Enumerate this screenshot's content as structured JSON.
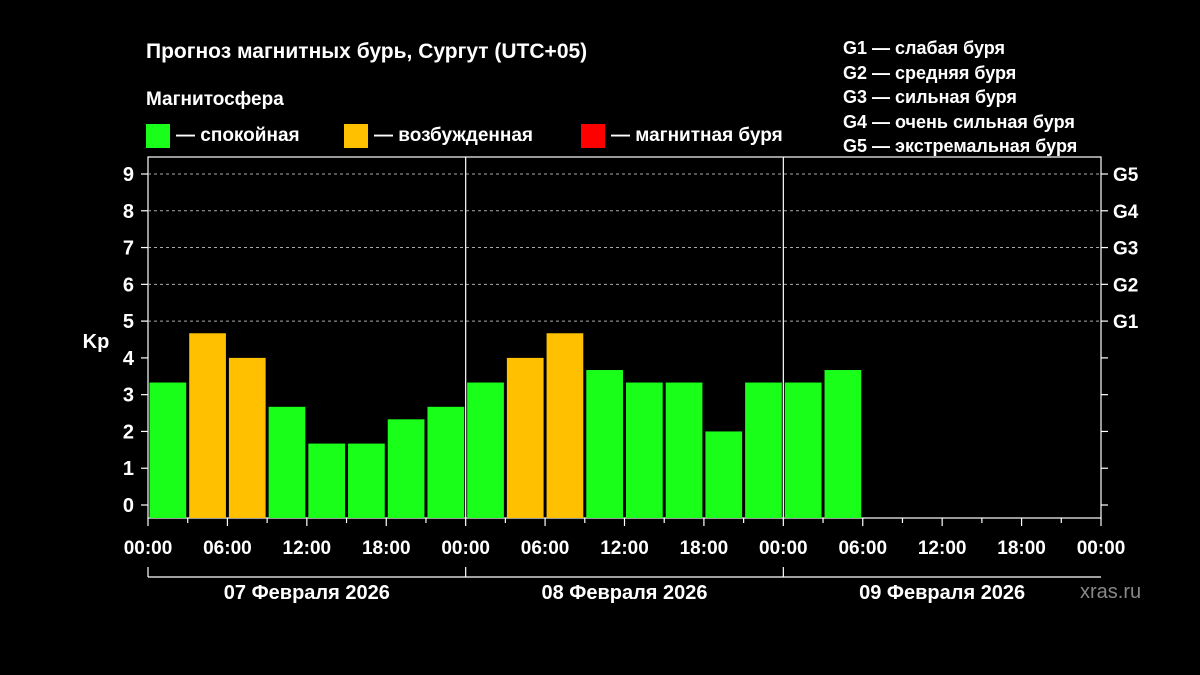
{
  "title": "Прогноз магнитных бурь, Сургут (UTC+05)",
  "subtitle": "Магнитосфера",
  "legend": [
    {
      "label": "— спокойная",
      "color": "#1aff1a"
    },
    {
      "label": "— возбужденная",
      "color": "#ffc000"
    },
    {
      "label": "— магнитная буря",
      "color": "#ff0000"
    }
  ],
  "g_legend": [
    "G1 — слабая буря",
    "G2 — средняя буря",
    "G3 — сильная буря",
    "G4 — очень сильная буря",
    "G5 — экстремальная буря"
  ],
  "watermark": "xras.ru",
  "chart_data": {
    "type": "bar",
    "ylabel": "Kp",
    "ylim": [
      0,
      9
    ],
    "y_ticks": [
      "0",
      "1",
      "2",
      "3",
      "4",
      "5",
      "6",
      "7",
      "8",
      "9"
    ],
    "right_ticks": [
      {
        "kp": 5,
        "label": "G1"
      },
      {
        "kp": 6,
        "label": "G2"
      },
      {
        "kp": 7,
        "label": "G3"
      },
      {
        "kp": 8,
        "label": "G4"
      },
      {
        "kp": 9,
        "label": "G5"
      }
    ],
    "x_tick_labels": [
      "00:00",
      "06:00",
      "12:00",
      "18:00",
      "00:00",
      "06:00",
      "12:00",
      "18:00",
      "00:00",
      "06:00",
      "12:00",
      "18:00",
      "00:00"
    ],
    "days": [
      "07 Февраля 2026",
      "08 Февраля 2026",
      "09 Февраля 2026"
    ],
    "bar_interval_hours": 3,
    "total_intervals": 24,
    "values": [
      3.33,
      4.67,
      4.0,
      2.67,
      1.67,
      1.67,
      2.33,
      2.67,
      3.33,
      4.0,
      4.67,
      3.67,
      3.33,
      3.33,
      2.0,
      3.33,
      3.33,
      3.67
    ],
    "levels": [
      "calm",
      "active",
      "active",
      "calm",
      "calm",
      "calm",
      "calm",
      "calm",
      "calm",
      "active",
      "active",
      "calm",
      "calm",
      "calm",
      "calm",
      "calm",
      "calm",
      "calm"
    ],
    "level_colors": {
      "calm": "#1aff1a",
      "active": "#ffc000",
      "storm": "#ff0000"
    },
    "grid": "dashed at Kp 5–9"
  }
}
